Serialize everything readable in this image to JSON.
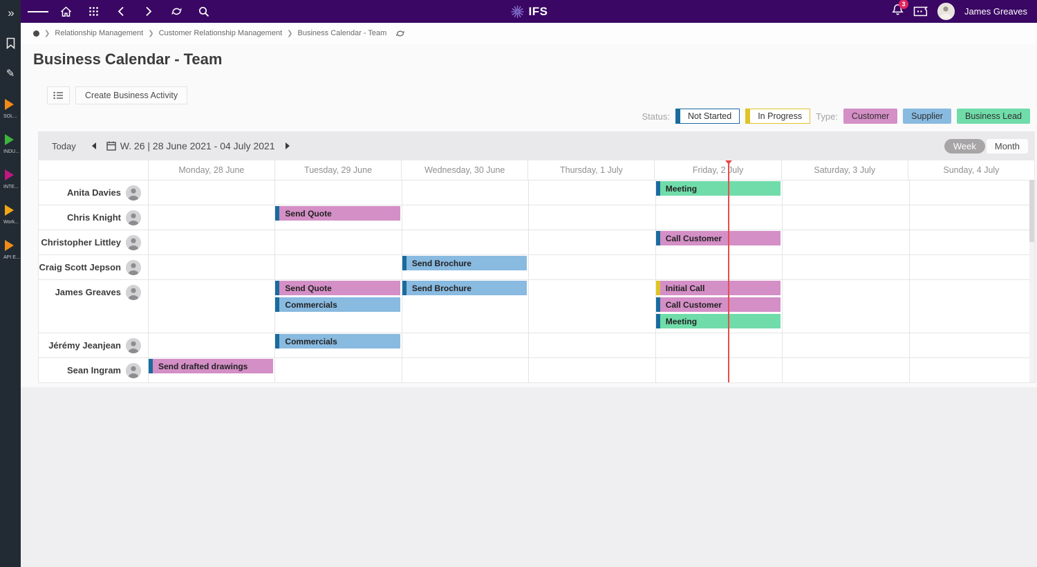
{
  "topbar": {
    "logo_text": "IFS",
    "user_name": "James Greaves",
    "notification_count": "3"
  },
  "sidebar": {
    "items": [
      {
        "label": "SOL...",
        "color": "#F28A18"
      },
      {
        "label": "INDU...",
        "color": "#3DB53D"
      },
      {
        "label": "INTE...",
        "color": "#C0187E"
      },
      {
        "label": "Work...",
        "color": "#F2A616"
      },
      {
        "label": "API E...",
        "color": "#F28A18"
      }
    ]
  },
  "breadcrumb": {
    "items": [
      "Relationship Management",
      "Customer Relationship Management",
      "Business Calendar - Team"
    ]
  },
  "page": {
    "title": "Business Calendar - Team"
  },
  "actionbar": {
    "create_button": "Create Business Activity"
  },
  "legend": {
    "status_label": "Status:",
    "type_label": "Type:",
    "statuses": [
      {
        "label": "Not Started",
        "color": "#1A6B9E"
      },
      {
        "label": "In Progress",
        "color": "#DFC428"
      }
    ],
    "types": [
      {
        "label": "Customer",
        "color": "#D48FC6"
      },
      {
        "label": "Supplier",
        "color": "#89BAE0"
      },
      {
        "label": "Business Lead",
        "color": "#70DCAA"
      }
    ]
  },
  "calendar": {
    "today_label": "Today",
    "range_label": "W. 26 | 28 June 2021 - 04 July 2021",
    "view_week": "Week",
    "view_month": "Month",
    "selected_view": "Week",
    "days": [
      "Monday, 28 June",
      "Tuesday, 29 June",
      "Wednesday, 30 June",
      "Thursday, 1 July",
      "Friday, 2 July",
      "Saturday, 3 July",
      "Sunday, 4 July"
    ],
    "colors": {
      "customer": "#D48FC6",
      "supplier": "#89BAE0",
      "business_lead": "#70DCAA",
      "not_started": "#1A6B9E",
      "in_progress": "#DFC428"
    },
    "people": [
      {
        "name": "Anita Davies",
        "slots": 1
      },
      {
        "name": "Chris Knight",
        "slots": 1
      },
      {
        "name": "Christopher Littley",
        "slots": 1
      },
      {
        "name": "Craig Scott Jepson",
        "slots": 1
      },
      {
        "name": "James Greaves",
        "slots": 3
      },
      {
        "name": "Jérémy Jeanjean",
        "slots": 1
      },
      {
        "name": "Sean Ingram",
        "slots": 1
      }
    ],
    "events": [
      {
        "person": "Anita Davies",
        "day": 4,
        "slot": 0,
        "label": "Meeting",
        "type": "business_lead",
        "status": "not_started"
      },
      {
        "person": "Chris Knight",
        "day": 1,
        "slot": 0,
        "label": "Send Quote",
        "type": "customer",
        "status": "not_started"
      },
      {
        "person": "Christopher Littley",
        "day": 4,
        "slot": 0,
        "label": "Call Customer",
        "type": "customer",
        "status": "not_started"
      },
      {
        "person": "Craig Scott Jepson",
        "day": 2,
        "slot": 0,
        "label": "Send Brochure",
        "type": "supplier",
        "status": "not_started"
      },
      {
        "person": "James Greaves",
        "day": 1,
        "slot": 0,
        "label": "Send Quote",
        "type": "customer",
        "status": "not_started"
      },
      {
        "person": "James Greaves",
        "day": 1,
        "slot": 1,
        "label": "Commercials",
        "type": "supplier",
        "status": "not_started"
      },
      {
        "person": "James Greaves",
        "day": 2,
        "slot": 0,
        "label": "Send Brochure",
        "type": "supplier",
        "status": "not_started"
      },
      {
        "person": "James Greaves",
        "day": 4,
        "slot": 0,
        "label": "Initial Call",
        "type": "customer",
        "status": "in_progress"
      },
      {
        "person": "James Greaves",
        "day": 4,
        "slot": 1,
        "label": "Call Customer",
        "type": "customer",
        "status": "not_started"
      },
      {
        "person": "James Greaves",
        "day": 4,
        "slot": 2,
        "label": "Meeting",
        "type": "business_lead",
        "status": "not_started"
      },
      {
        "person": "Jérémy Jeanjean",
        "day": 1,
        "slot": 0,
        "label": "Commercials",
        "type": "supplier",
        "status": "not_started"
      },
      {
        "person": "Sean Ingram",
        "day": 0,
        "slot": 0,
        "label": "Send drafted drawings",
        "type": "customer",
        "status": "not_started"
      }
    ]
  }
}
